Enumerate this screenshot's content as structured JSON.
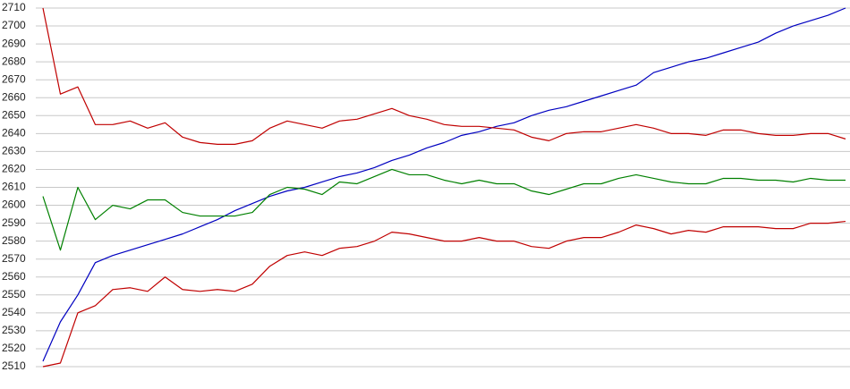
{
  "chart_data": {
    "type": "line",
    "categories": [
      null,
      null,
      null,
      null,
      null,
      null,
      null,
      null,
      null,
      null,
      null,
      null,
      null,
      null,
      null,
      null,
      null,
      null,
      null,
      null,
      null,
      null,
      null,
      null,
      null,
      null,
      null,
      null,
      null,
      null,
      null,
      null,
      null,
      null,
      null,
      null,
      null,
      null,
      null,
      null,
      null,
      null,
      null,
      null,
      null,
      null,
      null
    ],
    "series": [
      {
        "color": "#0000c0",
        "values": [
          2513,
          2535,
          2550,
          2568,
          2572,
          2575,
          2578,
          2581,
          2584,
          2588,
          2592,
          2597,
          2601,
          2605,
          2608,
          2610,
          2613,
          2616,
          2618,
          2621,
          2625,
          2628,
          2632,
          2635,
          2639,
          2641,
          2644,
          2646,
          2650,
          2653,
          2655,
          2658,
          2661,
          2664,
          2667,
          2674,
          2677,
          2680,
          2682,
          2685,
          2688,
          2691,
          2696,
          2700,
          2703,
          2706,
          2710
        ]
      },
      {
        "color": "#c00000",
        "values": [
          2710,
          2662,
          2666,
          2645,
          2645,
          2647,
          2643,
          2646,
          2638,
          2635,
          2634,
          2634,
          2636,
          2643,
          2647,
          2645,
          2643,
          2647,
          2648,
          2651,
          2654,
          2650,
          2648,
          2645,
          2644,
          2644,
          2643,
          2642,
          2638,
          2636,
          2640,
          2641,
          2641,
          2643,
          2645,
          2643,
          2640,
          2640,
          2639,
          2642,
          2642,
          2640,
          2639,
          2639,
          2640,
          2640,
          2637
        ]
      },
      {
        "color": "#008000",
        "values": [
          2605,
          2575,
          2610,
          2592,
          2600,
          2598,
          2603,
          2603,
          2596,
          2594,
          2594,
          2594,
          2596,
          2606,
          2610,
          2609,
          2606,
          2613,
          2612,
          2616,
          2620,
          2617,
          2617,
          2614,
          2612,
          2614,
          2612,
          2612,
          2608,
          2606,
          2609,
          2612,
          2612,
          2615,
          2617,
          2615,
          2613,
          2612,
          2612,
          2615,
          2615,
          2614,
          2614,
          2613,
          2615,
          2614,
          2614
        ]
      },
      {
        "color": "#c00000",
        "values": [
          2510,
          2512,
          2540,
          2544,
          2553,
          2554,
          2552,
          2560,
          2553,
          2552,
          2553,
          2552,
          2556,
          2566,
          2572,
          2574,
          2572,
          2576,
          2577,
          2580,
          2585,
          2584,
          2582,
          2580,
          2580,
          2582,
          2580,
          2580,
          2577,
          2576,
          2580,
          2582,
          2582,
          2585,
          2589,
          2587,
          2584,
          2586,
          2585,
          2588,
          2588,
          2588,
          2587,
          2587,
          2590,
          2590,
          2591
        ]
      }
    ],
    "ylim": [
      2510,
      2710
    ],
    "yticks": [
      2510,
      2520,
      2530,
      2540,
      2550,
      2560,
      2570,
      2580,
      2590,
      2600,
      2610,
      2620,
      2630,
      2640,
      2650,
      2660,
      2670,
      2680,
      2690,
      2700,
      2710
    ],
    "grid": true
  }
}
